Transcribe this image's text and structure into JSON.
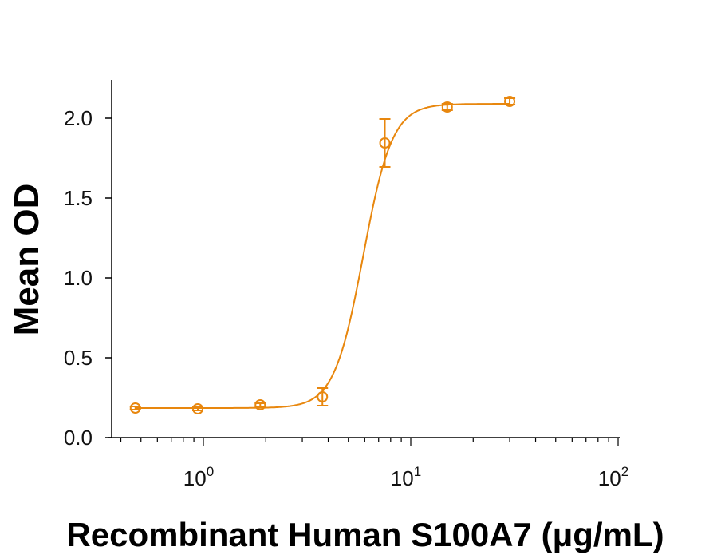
{
  "chart_data": {
    "type": "scatter",
    "title": "",
    "xlabel": "Recombinant Human S100A7 (μg/mL)",
    "ylabel": "Mean OD",
    "x_scale": "log",
    "xlim": [
      0.4,
      100
    ],
    "ylim": [
      0,
      2.2
    ],
    "x_ticks": [
      {
        "value": 1,
        "base": "10",
        "exp": "0"
      },
      {
        "value": 10,
        "base": "10",
        "exp": "1"
      },
      {
        "value": 100,
        "base": "10",
        "exp": "2"
      }
    ],
    "y_ticks": [
      {
        "value": 0,
        "label": "0.0"
      },
      {
        "value": 0.5,
        "label": "0.5"
      },
      {
        "value": 1,
        "label": "1.0"
      },
      {
        "value": 1.5,
        "label": "1.5"
      },
      {
        "value": 2,
        "label": "2.0"
      }
    ],
    "grid": false,
    "color": "#E8870E",
    "series": [
      {
        "x": [
          0.47,
          0.94,
          1.88,
          3.75,
          7.5,
          15,
          30
        ],
        "y": [
          0.185,
          0.18,
          0.205,
          0.255,
          1.845,
          2.07,
          2.105
        ],
        "error": [
          0.01,
          0.01,
          0.01,
          0.055,
          0.15,
          0.02,
          0.02
        ],
        "marker": "open-circle",
        "fit": "sigmoidal curve"
      }
    ]
  }
}
